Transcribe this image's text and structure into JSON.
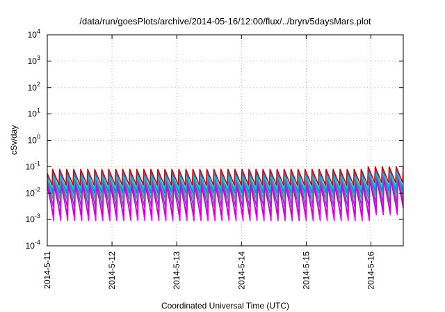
{
  "chart_data": {
    "type": "line",
    "title": "/data/run/goesPlots/archive/2014-05-16/12:00/flux/../bryn/5daysMars.plot",
    "xlabel": "Coordinated Universal Time (UTC)",
    "ylabel": "cSv/day",
    "yscale": "log",
    "ylim": [
      0.0001,
      10000
    ],
    "xlim": [
      "2014-05-11",
      "2014-05-16T12:00"
    ],
    "grid": true,
    "legend": "none",
    "y_ticks": [
      {
        "base": "10",
        "exp": "-4",
        "value": 0.0001
      },
      {
        "base": "10",
        "exp": "-3",
        "value": 0.001
      },
      {
        "base": "10",
        "exp": "-2",
        "value": 0.01
      },
      {
        "base": "10",
        "exp": "-1",
        "value": 0.1
      },
      {
        "base": "10",
        "exp": "0",
        "value": 1
      },
      {
        "base": "10",
        "exp": "1",
        "value": 10
      },
      {
        "base": "10",
        "exp": "2",
        "value": 100
      },
      {
        "base": "10",
        "exp": "3",
        "value": 1000
      },
      {
        "base": "10",
        "exp": "4",
        "value": 10000
      }
    ],
    "x_ticks": [
      {
        "label": "2014-5-11",
        "value": "2014-05-11"
      },
      {
        "label": "2014-5-12",
        "value": "2014-05-12"
      },
      {
        "label": "2014-5-13",
        "value": "2014-05-13"
      },
      {
        "label": "2014-5-14",
        "value": "2014-05-14"
      },
      {
        "label": "2014-5-15",
        "value": "2014-05-15"
      },
      {
        "label": "2014-5-16",
        "value": "2014-05-16"
      }
    ],
    "series": [
      {
        "color": "#ff00ff",
        "peak": 0.03,
        "trough": 0.0009,
        "peak_late": 0.05,
        "trough_late": 0.0015
      },
      {
        "color": "#cc00cc",
        "peak": 0.02,
        "trough": 0.0015,
        "peak_late": 0.035,
        "trough_late": 0.002
      },
      {
        "color": "#9933cc",
        "peak": 0.04,
        "trough": 0.003,
        "peak_late": 0.06,
        "trough_late": 0.004
      },
      {
        "color": "#33aa88",
        "peak": 0.05,
        "trough": 0.006,
        "peak_late": 0.07,
        "trough_late": 0.008
      },
      {
        "color": "#0088ff",
        "peak": 0.06,
        "trough": 0.01,
        "peak_late": 0.08,
        "trough_late": 0.012
      },
      {
        "color": "#00ccdd",
        "peak": 0.045,
        "trough": 0.015,
        "peak_late": 0.06,
        "trough_late": 0.018
      },
      {
        "color": "#dd0000",
        "peak": 0.08,
        "trough": 0.02,
        "peak_late": 0.1,
        "trough_late": 0.025
      }
    ],
    "cycle_hours": 2.6
  }
}
